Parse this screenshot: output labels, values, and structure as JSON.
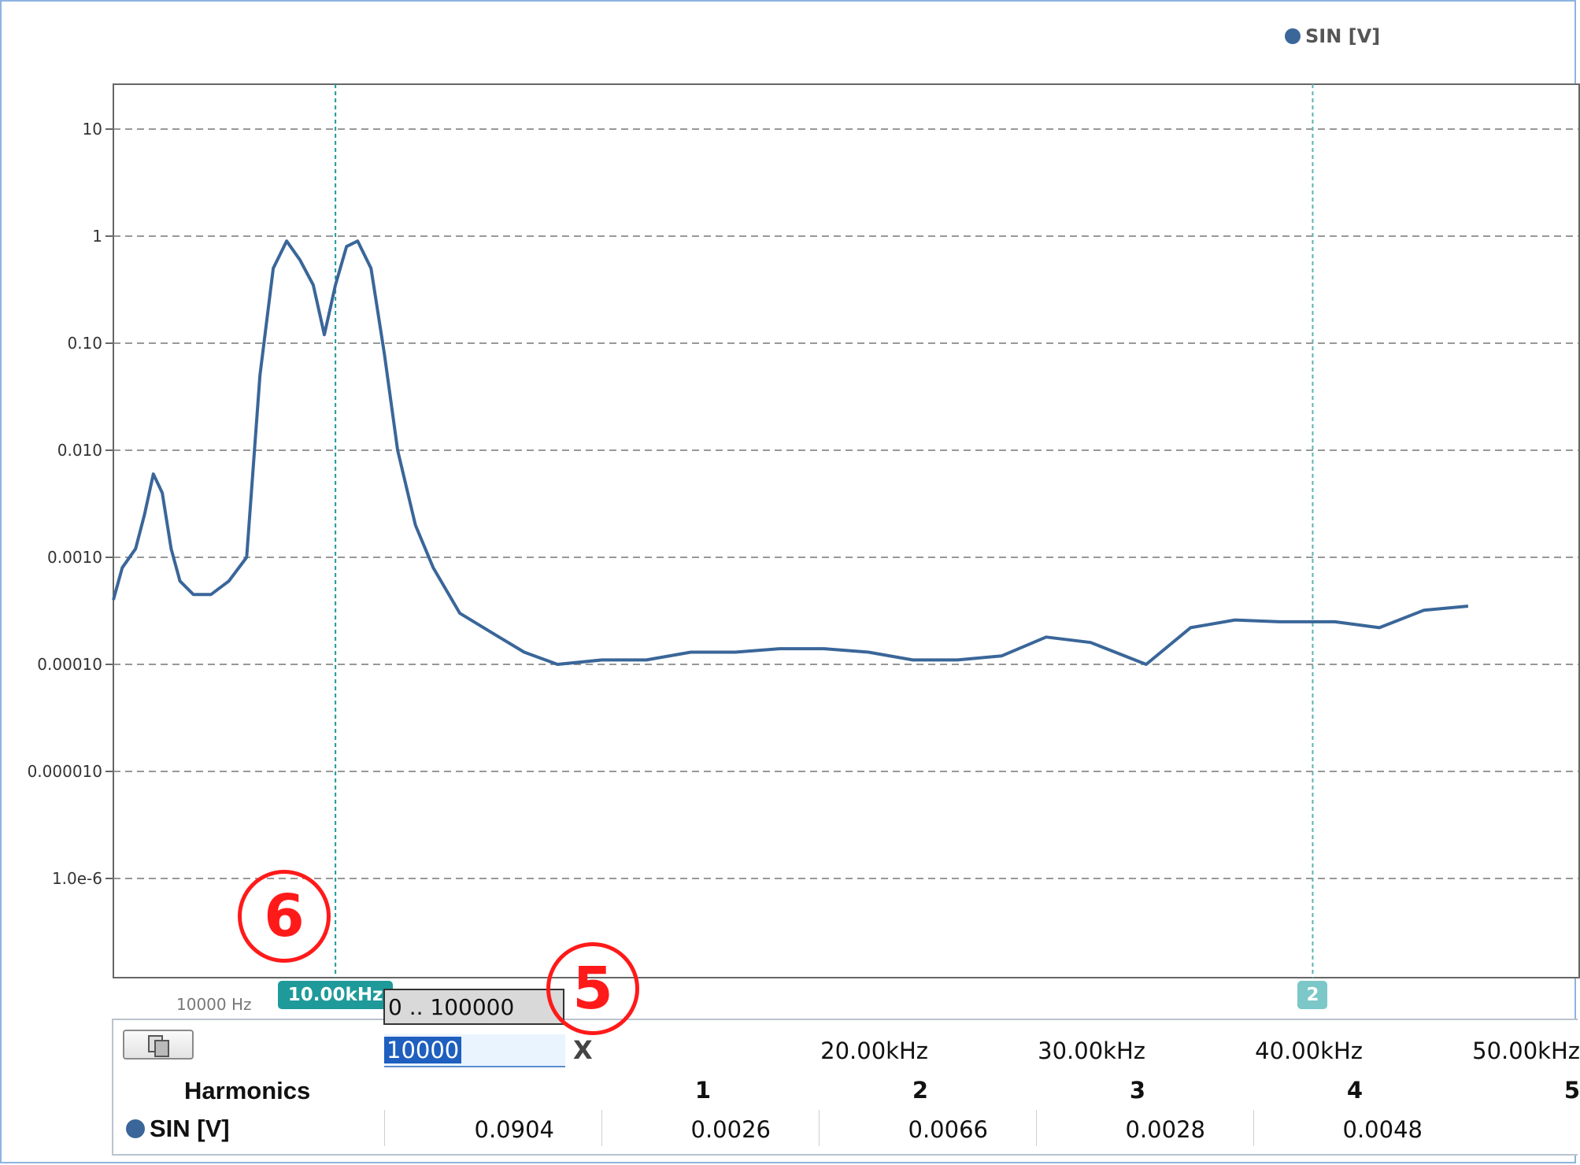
{
  "legend": {
    "label": "SIN [V]",
    "color": "#3a6699"
  },
  "chart_data": {
    "type": "line",
    "title": "",
    "xlabel": "",
    "ylabel": "",
    "yscale": "log",
    "xlim_hz": [
      0,
      66000
    ],
    "ylim": [
      1e-07,
      25
    ],
    "y_ticks": [
      {
        "value": 10,
        "label": "10"
      },
      {
        "value": 1,
        "label": "1"
      },
      {
        "value": 0.1,
        "label": "0.10"
      },
      {
        "value": 0.01,
        "label": "0.010"
      },
      {
        "value": 0.001,
        "label": "0.0010"
      },
      {
        "value": 0.0001,
        "label": "0.00010"
      },
      {
        "value": 1e-05,
        "label": "0.000010"
      },
      {
        "value": 1e-06,
        "label": "1.0e-6"
      }
    ],
    "grid": "horizontal dashed",
    "legend_position": "top-right",
    "series": [
      {
        "name": "SIN [V]",
        "color": "#3a6699",
        "points": [
          [
            0,
            0.0004
          ],
          [
            400,
            0.0008
          ],
          [
            1000,
            0.0012
          ],
          [
            1400,
            0.0025
          ],
          [
            1800,
            0.006
          ],
          [
            2200,
            0.004
          ],
          [
            2600,
            0.0012
          ],
          [
            3000,
            0.0006
          ],
          [
            3600,
            0.00045
          ],
          [
            4400,
            0.00045
          ],
          [
            5200,
            0.0006
          ],
          [
            6000,
            0.001
          ],
          [
            6600,
            0.05
          ],
          [
            7200,
            0.5
          ],
          [
            7800,
            0.9
          ],
          [
            8400,
            0.6
          ],
          [
            9000,
            0.35
          ],
          [
            9500,
            0.12
          ],
          [
            10000,
            0.35
          ],
          [
            10500,
            0.8
          ],
          [
            11000,
            0.9
          ],
          [
            11600,
            0.5
          ],
          [
            12200,
            0.08
          ],
          [
            12800,
            0.01
          ],
          [
            13600,
            0.002
          ],
          [
            14400,
            0.0008
          ],
          [
            15600,
            0.0003
          ],
          [
            17000,
            0.0002
          ],
          [
            18500,
            0.00013
          ],
          [
            20000,
            0.0001
          ],
          [
            22000,
            0.00011
          ],
          [
            24000,
            0.00011
          ],
          [
            26000,
            0.00013
          ],
          [
            28000,
            0.00013
          ],
          [
            30000,
            0.00014
          ],
          [
            32000,
            0.00014
          ],
          [
            34000,
            0.00013
          ],
          [
            36000,
            0.00011
          ],
          [
            38000,
            0.00011
          ],
          [
            40000,
            0.00012
          ],
          [
            42000,
            0.00018
          ],
          [
            44000,
            0.00016
          ],
          [
            46500,
            0.0001
          ],
          [
            48500,
            0.00022
          ],
          [
            50500,
            0.00026
          ],
          [
            52500,
            0.00025
          ],
          [
            55000,
            0.00025
          ],
          [
            57000,
            0.00022
          ],
          [
            59000,
            0.00032
          ],
          [
            61000,
            0.00035
          ]
        ]
      }
    ]
  },
  "x_axis": {
    "range_hint": "0 .. 100000"
  },
  "markers": [
    {
      "label": "10.00kHz",
      "ghost": "10000 Hz",
      "freq_hz": 10000
    },
    {
      "label": "2",
      "freq_hz": 54000
    }
  ],
  "table": {
    "input_value": "10000",
    "clear_symbol": "X",
    "row_header": "Harmonics",
    "series_label": "SIN  [V]",
    "columns": [
      {
        "freq": "",
        "number": "1",
        "value": "0.0904"
      },
      {
        "freq": "20.00kHz",
        "number": "2",
        "value": "0.0026"
      },
      {
        "freq": "30.00kHz",
        "number": "3",
        "value": "0.0066"
      },
      {
        "freq": "40.00kHz",
        "number": "4",
        "value": "0.0028"
      },
      {
        "freq": "50.00kHz",
        "number": "5",
        "value": "0.0048"
      }
    ]
  },
  "callouts": {
    "six": "6",
    "five": "5"
  }
}
